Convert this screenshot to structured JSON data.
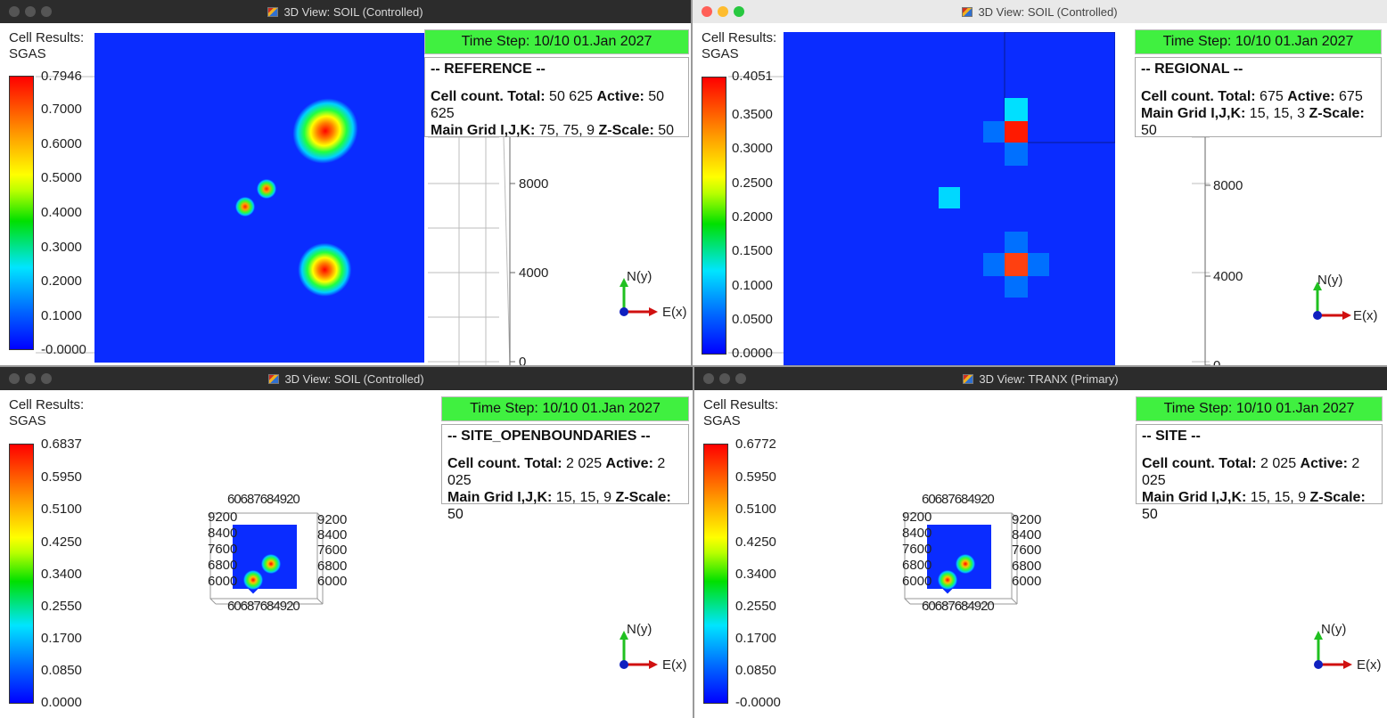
{
  "windows": [
    {
      "title": "3D View: SOIL (Controlled)",
      "legend": {
        "line1": "Cell Results:",
        "line2": "SGAS",
        "ticks": [
          "0.7946",
          "0.7000",
          "0.6000",
          "0.5000",
          "0.4000",
          "0.3000",
          "0.2000",
          "0.1000",
          "-0.0000"
        ]
      },
      "timestep": "Time Step: 10/10 01.Jan 2027",
      "case_name": "-- REFERENCE --",
      "cell_count_label": "Cell count. Total:",
      "cell_total": "50 625",
      "active_label": "Active:",
      "cell_active": "50 625",
      "grid_label": "Main Grid I,J,K:",
      "grid_dims": "75, 75, 9",
      "zscale_label": "Z-Scale:",
      "zscale": "50",
      "axis_ticks": [
        "8000",
        "4000",
        "0"
      ],
      "axes": {
        "n": "N(y)",
        "e": "E(x)"
      }
    },
    {
      "title": "3D View: SOIL (Controlled)",
      "legend": {
        "line1": "Cell Results:",
        "line2": "SGAS",
        "ticks": [
          "0.4051",
          "0.3500",
          "0.3000",
          "0.2500",
          "0.2000",
          "0.1500",
          "0.1000",
          "0.0500",
          "0.0000"
        ]
      },
      "timestep": "Time Step: 10/10 01.Jan 2027",
      "case_name": "-- REGIONAL --",
      "cell_count_label": "Cell count. Total:",
      "cell_total": "675",
      "active_label": "Active:",
      "cell_active": "675",
      "grid_label": "Main Grid I,J,K:",
      "grid_dims": "15, 15, 3",
      "zscale_label": "Z-Scale:",
      "zscale": "50",
      "axis_ticks": [
        "8000",
        "4000",
        "0"
      ],
      "axes": {
        "n": "N(y)",
        "e": "E(x)"
      }
    },
    {
      "title": "3D View: SOIL (Controlled)",
      "legend": {
        "line1": "Cell Results:",
        "line2": "SGAS",
        "ticks": [
          "0.6837",
          "0.5950",
          "0.5100",
          "0.4250",
          "0.3400",
          "0.2550",
          "0.1700",
          "0.0850",
          "0.0000"
        ]
      },
      "timestep": "Time Step: 10/10 01.Jan 2027",
      "case_name": "-- SITE_OPENBOUNDARIES --",
      "cell_count_label": "Cell count. Total:",
      "cell_total": "2 025",
      "active_label": "Active:",
      "cell_active": "2 025",
      "grid_label": "Main Grid I,J,K:",
      "grid_dims": "15, 15, 9",
      "zscale_label": "Z-Scale:",
      "zscale": "50",
      "small_ticks_left": [
        "9200",
        "8400",
        "7600",
        "6800",
        "6000"
      ],
      "small_ticks_right": [
        "9200",
        "8400",
        "7600",
        "6800",
        "6000"
      ],
      "small_ticks_top": "60687684920",
      "small_ticks_bottom": "60687684920",
      "axes": {
        "n": "N(y)",
        "e": "E(x)"
      }
    },
    {
      "title": "3D View: TRANX (Primary)",
      "legend": {
        "line1": "Cell Results:",
        "line2": "SGAS",
        "ticks": [
          "0.6772",
          "0.5950",
          "0.5100",
          "0.4250",
          "0.3400",
          "0.2550",
          "0.1700",
          "0.0850",
          "-0.0000"
        ]
      },
      "timestep": "Time Step: 10/10 01.Jan 2027",
      "case_name": "-- SITE --",
      "cell_count_label": "Cell count. Total:",
      "cell_total": "2 025",
      "active_label": "Active:",
      "cell_active": "2 025",
      "grid_label": "Main Grid I,J,K:",
      "grid_dims": "15, 15, 9",
      "zscale_label": "Z-Scale:",
      "zscale": "50",
      "small_ticks_left": [
        "9200",
        "8400",
        "7600",
        "6800",
        "6000"
      ],
      "small_ticks_right": [
        "9200",
        "8400",
        "7600",
        "6800",
        "6000"
      ],
      "small_ticks_top": "60687684920",
      "small_ticks_bottom": "60687684920",
      "axes": {
        "n": "N(y)",
        "e": "E(x)"
      }
    }
  ],
  "colors": {
    "timestep_bg": "#40f040",
    "cell_bg": "#0a2cff",
    "active_close": "#ff5f57",
    "active_min": "#febc2e",
    "active_max": "#28c840"
  },
  "icons": [
    "close-icon",
    "minimize-icon",
    "maximize-icon",
    "app-icon",
    "axis-triad-icon"
  ]
}
